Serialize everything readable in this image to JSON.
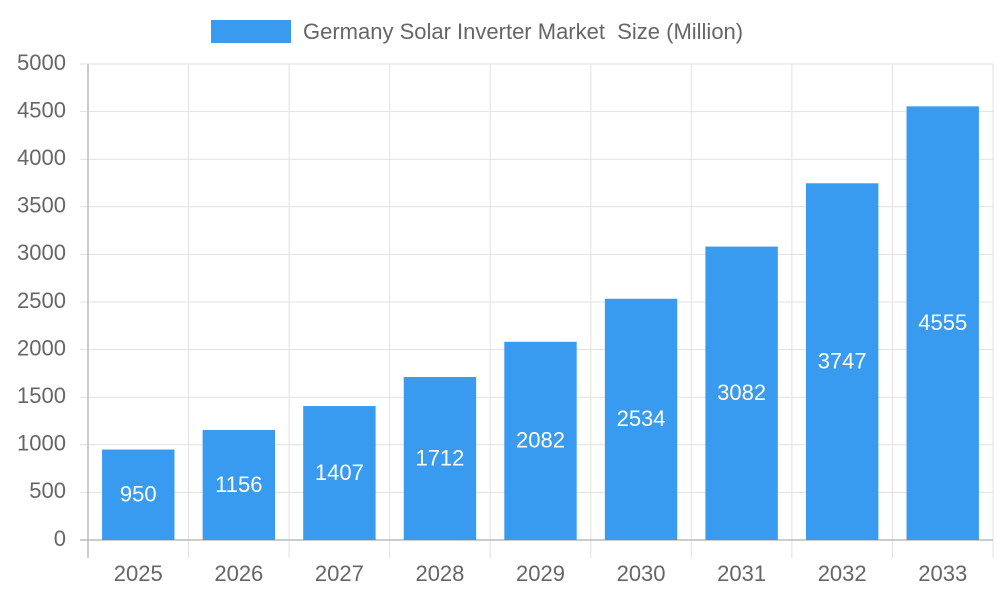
{
  "chart_data": {
    "type": "bar",
    "categories": [
      "2025",
      "2026",
      "2027",
      "2028",
      "2029",
      "2030",
      "2031",
      "2032",
      "2033"
    ],
    "series": [
      {
        "name": "Germany Solar Inverter Market  Size (Million)",
        "color": "#389bf0",
        "values": [
          950,
          1156,
          1407,
          1712,
          2082,
          2534,
          3082,
          3747,
          4555
        ]
      }
    ],
    "ylim": [
      0,
      5000
    ],
    "yticks": [
      0,
      500,
      1000,
      1500,
      2000,
      2500,
      3000,
      3500,
      4000,
      4500,
      5000
    ],
    "grid": true,
    "legend": "top",
    "data_labels": true
  }
}
